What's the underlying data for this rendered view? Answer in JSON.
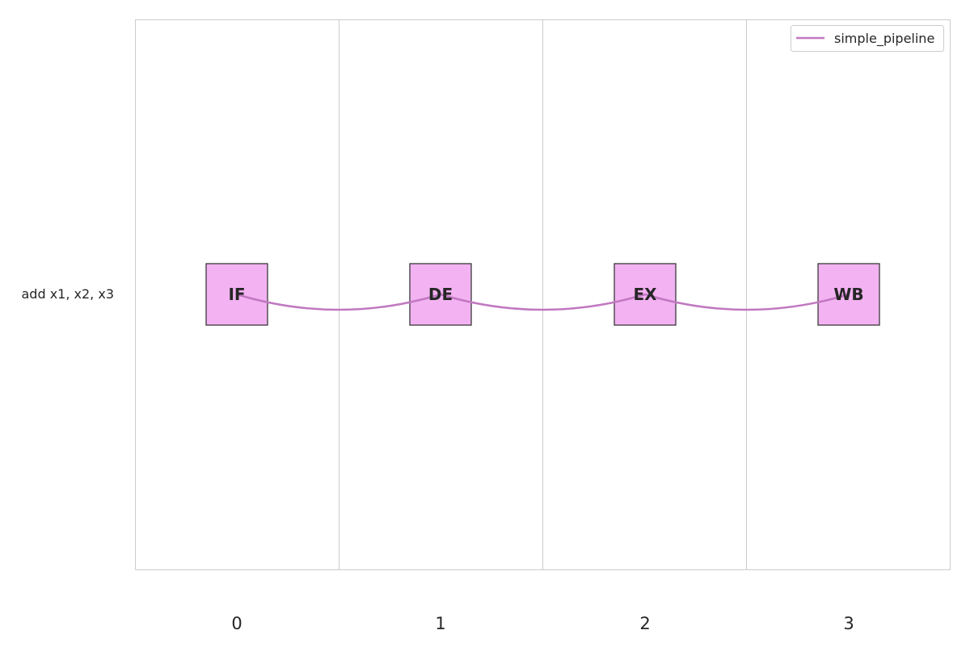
{
  "diagram": {
    "instruction": "add x1, x2, x3",
    "stages": [
      {
        "label": "IF",
        "cycle": 0
      },
      {
        "label": "DE",
        "cycle": 1
      },
      {
        "label": "EX",
        "cycle": 2
      },
      {
        "label": "WB",
        "cycle": 3
      }
    ],
    "cycles": [
      "0",
      "1",
      "2",
      "3"
    ],
    "legend": {
      "label": "simple_pipeline",
      "color": "#c178c1"
    },
    "box_color": "#f3b2f2"
  }
}
